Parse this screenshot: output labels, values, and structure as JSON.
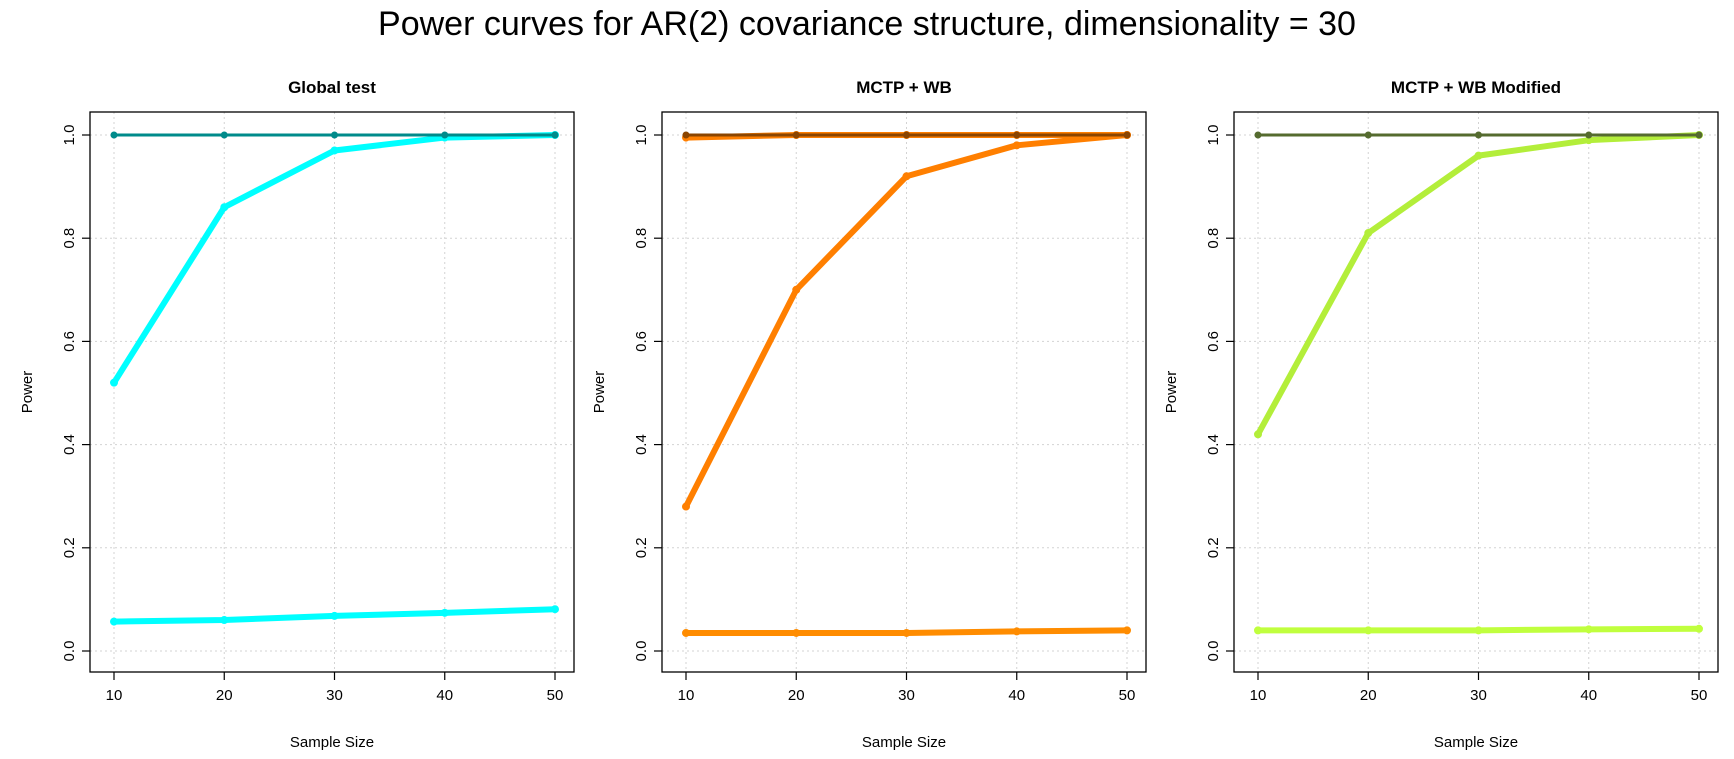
{
  "title": "Power curves for AR(2) covariance structure, dimensionality = 30",
  "chart_data": [
    {
      "type": "line",
      "title": "Global test",
      "xlabel": "Sample Size",
      "ylabel": "Power",
      "x": [
        10,
        20,
        30,
        40,
        50
      ],
      "xticks": [
        "10",
        "20",
        "30",
        "40",
        "50"
      ],
      "yticks": [
        "0.0",
        "0.2",
        "0.4",
        "0.6",
        "0.8",
        "1.0"
      ],
      "xlim": [
        10,
        50
      ],
      "ylim": [
        0,
        1
      ],
      "grid": true,
      "series": [
        {
          "values": [
            1.0,
            1.0,
            1.0,
            1.0,
            1.0
          ],
          "color": "#008B8B"
        },
        {
          "values": [
            0.52,
            0.86,
            0.97,
            0.995,
            1.0
          ],
          "color": "#00FFFF"
        },
        {
          "values": [
            0.057,
            0.06,
            0.068,
            0.074,
            0.081
          ],
          "color": "#00FFFF"
        }
      ]
    },
    {
      "type": "line",
      "title": "MCTP + WB",
      "xlabel": "Sample Size",
      "ylabel": "Power",
      "x": [
        10,
        20,
        30,
        40,
        50
      ],
      "xticks": [
        "10",
        "20",
        "30",
        "40",
        "50"
      ],
      "yticks": [
        "0.0",
        "0.2",
        "0.4",
        "0.6",
        "0.8",
        "1.0"
      ],
      "xlim": [
        10,
        50
      ],
      "ylim": [
        0,
        1
      ],
      "grid": true,
      "series": [
        {
          "values": [
            1.0,
            1.0,
            1.0,
            1.0,
            1.0
          ],
          "color": "#8B4500"
        },
        {
          "values": [
            0.995,
            1.0,
            1.0,
            1.0,
            1.0
          ],
          "color": "#FF7F00"
        },
        {
          "values": [
            0.28,
            0.7,
            0.92,
            0.98,
            1.0
          ],
          "color": "#FF7F00"
        },
        {
          "values": [
            0.035,
            0.035,
            0.035,
            0.038,
            0.04
          ],
          "color": "#FF8C00"
        }
      ]
    },
    {
      "type": "line",
      "title": "MCTP + WB Modified",
      "xlabel": "Sample Size",
      "ylabel": "Power",
      "x": [
        10,
        20,
        30,
        40,
        50
      ],
      "xticks": [
        "10",
        "20",
        "30",
        "40",
        "50"
      ],
      "yticks": [
        "0.0",
        "0.2",
        "0.4",
        "0.6",
        "0.8",
        "1.0"
      ],
      "xlim": [
        10,
        50
      ],
      "ylim": [
        0,
        1
      ],
      "grid": true,
      "series": [
        {
          "values": [
            1.0,
            1.0,
            1.0,
            1.0,
            1.0
          ],
          "color": "#556B2F"
        },
        {
          "values": [
            0.42,
            0.81,
            0.96,
            0.99,
            1.0
          ],
          "color": "#B3EE3A"
        },
        {
          "values": [
            0.04,
            0.04,
            0.04,
            0.042,
            0.043
          ],
          "color": "#C0FF3E"
        }
      ]
    }
  ]
}
